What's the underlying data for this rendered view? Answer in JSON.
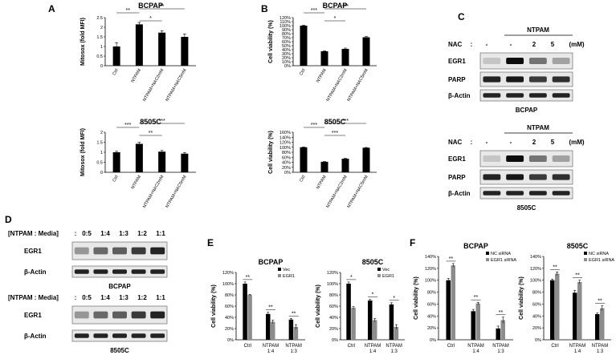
{
  "panels": {
    "A": "A",
    "B": "B",
    "C": "C",
    "D": "D",
    "E": "E",
    "F": "F"
  },
  "chart_data": [
    {
      "id": "A1",
      "type": "bar",
      "title": "BCPAP",
      "ylabel": "Mitosox (fold MFI)",
      "categories": [
        "Ctrl",
        "NTPAM",
        "NTPAM+NAC2mM",
        "NTPAM+NAC5mM"
      ],
      "values": [
        1.0,
        2.15,
        1.72,
        1.5
      ],
      "errors": [
        0.2,
        0.1,
        0.1,
        0.15
      ],
      "ylim": [
        0,
        2.5
      ],
      "yticks": [
        "0",
        "0.5",
        "1",
        "1.5",
        "2",
        "2.5"
      ],
      "significance": [
        {
          "from": 0,
          "to": 1,
          "label": "**"
        },
        {
          "from": 1,
          "to": 2,
          "label": "*"
        },
        {
          "from": 1,
          "to": 3,
          "label": "**"
        }
      ]
    },
    {
      "id": "A2",
      "type": "bar",
      "title": "8505C",
      "ylabel": "Mitosox (fold MFI)",
      "categories": [
        "Ctrl",
        "NTPAM",
        "NTPAM+NAC2mM",
        "NTPAM+NAC5mM"
      ],
      "values": [
        1.0,
        1.42,
        1.03,
        0.93
      ],
      "errors": [
        0.05,
        0.08,
        0.06,
        0.06
      ],
      "ylim": [
        0,
        2
      ],
      "yticks": [
        "0",
        "0.5",
        "1",
        "1.5",
        "2"
      ],
      "significance": [
        {
          "from": 0,
          "to": 1,
          "label": "***"
        },
        {
          "from": 1,
          "to": 2,
          "label": "**"
        },
        {
          "from": 1,
          "to": 3,
          "label": "***"
        }
      ]
    },
    {
      "id": "B1",
      "type": "bar",
      "title": "BCPAP",
      "ylabel": "Cell viability (%)",
      "categories": [
        "Ctrl",
        "NTPAM",
        "NTPAM+NAC2mM",
        "NTPAM+NAC5mM"
      ],
      "values": [
        100,
        36,
        42,
        71
      ],
      "errors": [
        1,
        1,
        2,
        2
      ],
      "ylim": [
        0,
        120
      ],
      "yticks": [
        "0%",
        "10%",
        "20%",
        "30%",
        "40%",
        "50%",
        "60%",
        "70%",
        "80%",
        "90%",
        "100%",
        "110%",
        "120%"
      ],
      "significance": [
        {
          "from": 0,
          "to": 1,
          "label": "***"
        },
        {
          "from": 1,
          "to": 2,
          "label": "*"
        },
        {
          "from": 1,
          "to": 3,
          "label": "***"
        }
      ]
    },
    {
      "id": "B2",
      "type": "bar",
      "title": "8505C",
      "ylabel": "Cell viability (%)",
      "categories": [
        "Ctrl",
        "NTPAM",
        "NTPAM+NAC2mM",
        "NTPAM+NAC5mM"
      ],
      "values": [
        100,
        42,
        54,
        98
      ],
      "errors": [
        1,
        1,
        2,
        1
      ],
      "ylim": [
        0,
        160
      ],
      "yticks": [
        "0%",
        "20%",
        "40%",
        "60%",
        "80%",
        "100%",
        "120%",
        "140%",
        "160%"
      ],
      "significance": [
        {
          "from": 0,
          "to": 1,
          "label": "***"
        },
        {
          "from": 1,
          "to": 2,
          "label": "***"
        },
        {
          "from": 1,
          "to": 3,
          "label": "***"
        }
      ]
    },
    {
      "id": "E1",
      "type": "bar",
      "title": "BCPAP",
      "ylabel": "Cell viability (%)",
      "categories": [
        "Ctrl",
        "NTPAM 1:4",
        "NTPAM 1:3"
      ],
      "series": [
        {
          "name": "Vec",
          "values": [
            100,
            46,
            36
          ],
          "errors": [
            3,
            3,
            2
          ],
          "color": "#000000"
        },
        {
          "name": "EGR1",
          "values": [
            80,
            32,
            23
          ],
          "errors": [
            1,
            3,
            4
          ],
          "color": "#8c8c8c"
        }
      ],
      "ylim": [
        0,
        120
      ],
      "yticks": [
        "0%",
        "20%",
        "40%",
        "60%",
        "80%",
        "100%",
        "120%"
      ],
      "significance": [
        "**",
        "**",
        "**"
      ],
      "legend": "top-right"
    },
    {
      "id": "E2",
      "type": "bar",
      "title": "8505C",
      "ylabel": "Cell viability (%)",
      "categories": [
        "Ctrl",
        "NTPAM 1:4",
        "NTPAM 1:3"
      ],
      "series": [
        {
          "name": "Vec",
          "values": [
            100,
            70,
            63
          ],
          "errors": [
            3,
            2,
            3
          ],
          "color": "#000000"
        },
        {
          "name": "EGR1",
          "values": [
            57,
            35,
            23
          ],
          "errors": [
            2,
            3,
            4
          ],
          "color": "#8c8c8c"
        }
      ],
      "ylim": [
        0,
        120
      ],
      "yticks": [
        "0%",
        "20%",
        "40%",
        "60%",
        "80%",
        "100%",
        "120%"
      ],
      "significance": [
        "*",
        "*",
        "*"
      ],
      "legend": "top-right"
    },
    {
      "id": "F1",
      "type": "bar",
      "title": "BCPAP",
      "ylabel": "Cell viability (%)",
      "categories": [
        "Ctrl",
        "NTPAM 1:4",
        "NTPAM 1:3"
      ],
      "series": [
        {
          "name": "NC siRNA",
          "values": [
            100,
            48,
            19
          ],
          "errors": [
            3,
            3,
            4
          ],
          "color": "#000000"
        },
        {
          "name": "EGR1 siRNA",
          "values": [
            125,
            61,
            33
          ],
          "errors": [
            3,
            2,
            5
          ],
          "color": "#8c8c8c"
        }
      ],
      "ylim": [
        0,
        140
      ],
      "yticks": [
        "0%",
        "20%",
        "40%",
        "60%",
        "80%",
        "100%",
        "120%",
        "140%"
      ],
      "significance": [
        "**",
        "**",
        "**"
      ],
      "legend": "top-right"
    },
    {
      "id": "F2",
      "type": "bar",
      "title": "8505C",
      "ylabel": "Cell viability (%)",
      "categories": [
        "Ctrl",
        "NTPAM 1:4",
        "NTPAM 1:3"
      ],
      "series": [
        {
          "name": "NC siRNA",
          "values": [
            100,
            79,
            43
          ],
          "errors": [
            2,
            4,
            2
          ],
          "color": "#000000"
        },
        {
          "name": "EGR1 siRNA",
          "values": [
            111,
            97,
            53
          ],
          "errors": [
            3,
            3,
            4
          ],
          "color": "#8c8c8c"
        }
      ],
      "ylim": [
        0,
        140
      ],
      "yticks": [
        "0%",
        "20%",
        "40%",
        "60%",
        "80%",
        "100%",
        "120%",
        "140%"
      ],
      "significance": [
        "**",
        "**",
        "**"
      ],
      "legend": "top-right"
    }
  ],
  "blots": {
    "C": {
      "top": {
        "header": "NTPAM",
        "treatment_label": "NAC",
        "lane_values": [
          ":",
          "-",
          "-",
          "2",
          "5",
          "(mM)"
        ],
        "rows": [
          "EGR1",
          "PARP",
          "β-Actin"
        ],
        "cell_line": "BCPAP"
      },
      "bottom": {
        "header": "NTPAM",
        "treatment_label": "NAC",
        "lane_values": [
          ":",
          "-",
          "-",
          "2",
          "5",
          "(mM)"
        ],
        "rows": [
          "EGR1",
          "PARP",
          "β-Actin"
        ],
        "cell_line": "8505C"
      }
    },
    "D": {
      "top": {
        "header_label": "[NTPAM : Media]",
        "ratios": [
          ":",
          "0:5",
          "1:4",
          "1:3",
          "1:2",
          "1:1"
        ],
        "rows": [
          "EGR1",
          "β-Actin"
        ],
        "cell_line": "BCPAP"
      },
      "bottom": {
        "header_label": "[NTPAM : Media]",
        "ratios": [
          ":",
          "0:5",
          "1:4",
          "1:3",
          "1:2",
          "1:1"
        ],
        "rows": [
          "EGR1",
          "β-Actin"
        ],
        "cell_line": "8505C"
      }
    }
  }
}
